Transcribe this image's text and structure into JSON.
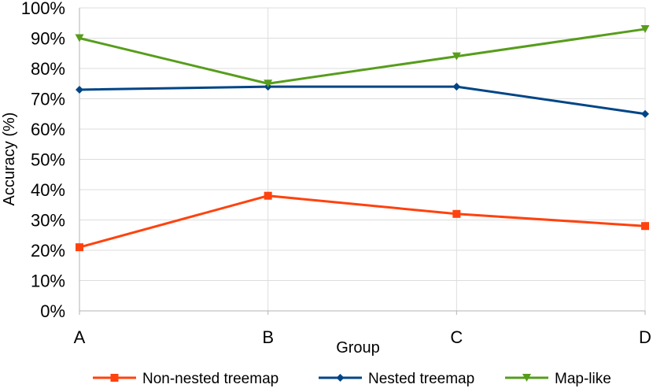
{
  "chart_data": {
    "type": "line",
    "title": "",
    "xlabel": "Group",
    "ylabel": "Accuracy (%)",
    "categories": [
      "A",
      "B",
      "C",
      "D"
    ],
    "ylim": [
      0,
      100
    ],
    "yticks": [
      0,
      10,
      20,
      30,
      40,
      50,
      60,
      70,
      80,
      90,
      100
    ],
    "ytick_labels": [
      "0%",
      "10%",
      "20%",
      "30%",
      "40%",
      "50%",
      "60%",
      "70%",
      "80%",
      "90%",
      "100%"
    ],
    "grid": true,
    "legend_position": "bottom",
    "series": [
      {
        "name": "Non-nested treemap",
        "values": [
          21,
          38,
          32,
          28
        ],
        "color": "#ff420e",
        "marker": "square"
      },
      {
        "name": "Nested treemap",
        "values": [
          73,
          74,
          74,
          65
        ],
        "color": "#004586",
        "marker": "diamond"
      },
      {
        "name": "Map-like",
        "values": [
          90,
          75,
          84,
          93
        ],
        "color": "#579d1c",
        "marker": "triangle-down"
      }
    ]
  }
}
